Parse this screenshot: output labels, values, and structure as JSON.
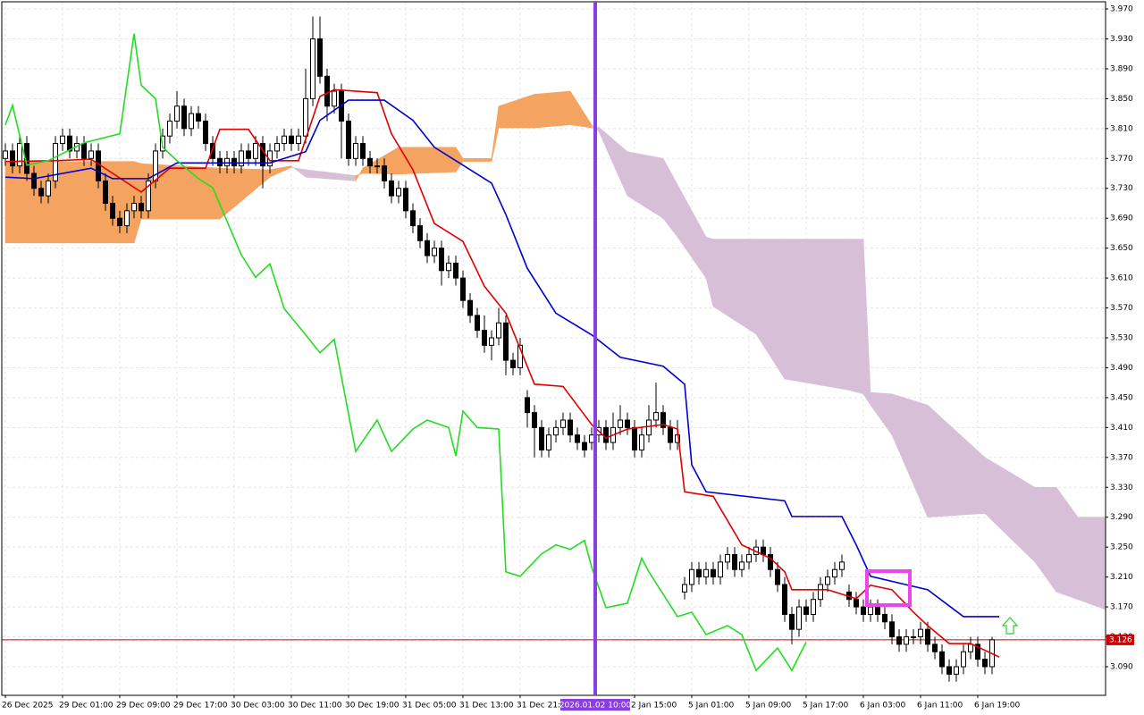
{
  "chart_data": {
    "type": "candlestick",
    "candles": [
      [
        3.77,
        3.79,
        3.76,
        3.78
      ],
      [
        3.78,
        3.79,
        3.75,
        3.76
      ],
      [
        3.76,
        3.8,
        3.75,
        3.79
      ],
      [
        3.79,
        3.8,
        3.74,
        3.75
      ],
      [
        3.75,
        3.76,
        3.72,
        3.73
      ],
      [
        3.73,
        3.74,
        3.71,
        3.72
      ],
      [
        3.72,
        3.75,
        3.71,
        3.74
      ],
      [
        3.74,
        3.8,
        3.73,
        3.79
      ],
      [
        3.79,
        3.81,
        3.78,
        3.8
      ],
      [
        3.8,
        3.81,
        3.77,
        3.78
      ],
      [
        3.78,
        3.8,
        3.77,
        3.79
      ],
      [
        3.79,
        3.8,
        3.76,
        3.77
      ],
      [
        3.77,
        3.79,
        3.76,
        3.78
      ],
      [
        3.78,
        3.79,
        3.73,
        3.74
      ],
      [
        3.74,
        3.75,
        3.7,
        3.71
      ],
      [
        3.71,
        3.72,
        3.68,
        3.69
      ],
      [
        3.69,
        3.7,
        3.67,
        3.68
      ],
      [
        3.68,
        3.71,
        3.67,
        3.7
      ],
      [
        3.7,
        3.72,
        3.69,
        3.71
      ],
      [
        3.71,
        3.72,
        3.69,
        3.7
      ],
      [
        3.7,
        3.75,
        3.69,
        3.74
      ],
      [
        3.74,
        3.79,
        3.73,
        3.78
      ],
      [
        3.78,
        3.81,
        3.77,
        3.8
      ],
      [
        3.8,
        3.83,
        3.79,
        3.82
      ],
      [
        3.82,
        3.86,
        3.81,
        3.84
      ],
      [
        3.84,
        3.85,
        3.8,
        3.81
      ],
      [
        3.81,
        3.84,
        3.8,
        3.83
      ],
      [
        3.83,
        3.84,
        3.81,
        3.82
      ],
      [
        3.82,
        3.83,
        3.78,
        3.79
      ],
      [
        3.79,
        3.8,
        3.76,
        3.77
      ],
      [
        3.77,
        3.78,
        3.75,
        3.76
      ],
      [
        3.76,
        3.78,
        3.75,
        3.77
      ],
      [
        3.77,
        3.78,
        3.75,
        3.76
      ],
      [
        3.76,
        3.79,
        3.75,
        3.78
      ],
      [
        3.78,
        3.79,
        3.76,
        3.77
      ],
      [
        3.77,
        3.8,
        3.76,
        3.79
      ],
      [
        3.79,
        3.8,
        3.73,
        3.76
      ],
      [
        3.76,
        3.79,
        3.75,
        3.78
      ],
      [
        3.78,
        3.8,
        3.77,
        3.79
      ],
      [
        3.79,
        3.81,
        3.78,
        3.8
      ],
      [
        3.8,
        3.81,
        3.78,
        3.79
      ],
      [
        3.79,
        3.81,
        3.78,
        3.8
      ],
      [
        3.8,
        3.89,
        3.79,
        3.85
      ],
      [
        3.85,
        3.96,
        3.84,
        3.93
      ],
      [
        3.93,
        3.96,
        3.87,
        3.88
      ],
      [
        3.88,
        3.89,
        3.82,
        3.84
      ],
      [
        3.84,
        3.87,
        3.83,
        3.86
      ],
      [
        3.86,
        3.87,
        3.77,
        3.82
      ],
      [
        3.82,
        3.83,
        3.76,
        3.77
      ],
      [
        3.77,
        3.8,
        3.76,
        3.79
      ],
      [
        3.79,
        3.8,
        3.76,
        3.77
      ],
      [
        3.77,
        3.78,
        3.75,
        3.76
      ],
      [
        3.76,
        3.77,
        3.75,
        3.76
      ],
      [
        3.76,
        3.77,
        3.73,
        3.74
      ],
      [
        3.74,
        3.75,
        3.71,
        3.72
      ],
      [
        3.72,
        3.74,
        3.71,
        3.73
      ],
      [
        3.73,
        3.74,
        3.69,
        3.7
      ],
      [
        3.7,
        3.71,
        3.67,
        3.68
      ],
      [
        3.68,
        3.69,
        3.65,
        3.66
      ],
      [
        3.66,
        3.67,
        3.63,
        3.64
      ],
      [
        3.64,
        3.66,
        3.63,
        3.65
      ],
      [
        3.65,
        3.66,
        3.6,
        3.62
      ],
      [
        3.62,
        3.64,
        3.61,
        3.63
      ],
      [
        3.63,
        3.64,
        3.6,
        3.61
      ],
      [
        3.61,
        3.62,
        3.57,
        3.58
      ],
      [
        3.58,
        3.59,
        3.55,
        3.56
      ],
      [
        3.56,
        3.57,
        3.53,
        3.54
      ],
      [
        3.54,
        3.56,
        3.51,
        3.52
      ],
      [
        3.52,
        3.54,
        3.5,
        3.53
      ],
      [
        3.53,
        3.57,
        3.52,
        3.55
      ],
      [
        3.55,
        3.56,
        3.48,
        3.5
      ],
      [
        3.5,
        3.51,
        3.48,
        3.49
      ],
      [
        3.49,
        3.53,
        3.48,
        3.52
      ],
      [
        3.45,
        3.46,
        3.41,
        3.43
      ],
      [
        3.43,
        3.44,
        3.37,
        3.41
      ],
      [
        3.41,
        3.42,
        3.37,
        3.38
      ],
      [
        3.38,
        3.41,
        3.37,
        3.4
      ],
      [
        3.4,
        3.42,
        3.39,
        3.41
      ],
      [
        3.41,
        3.43,
        3.4,
        3.42
      ],
      [
        3.42,
        3.43,
        3.39,
        3.4
      ],
      [
        3.4,
        3.41,
        3.38,
        3.39
      ],
      [
        3.39,
        3.4,
        3.37,
        3.38
      ],
      [
        3.39,
        3.41,
        3.38,
        3.4
      ],
      [
        3.4,
        3.42,
        3.39,
        3.41
      ],
      [
        3.41,
        3.42,
        3.38,
        3.39
      ],
      [
        3.39,
        3.43,
        3.38,
        3.41
      ],
      [
        3.41,
        3.44,
        3.4,
        3.42
      ],
      [
        3.42,
        3.43,
        3.4,
        3.41
      ],
      [
        3.41,
        3.42,
        3.37,
        3.38
      ],
      [
        3.38,
        3.41,
        3.37,
        3.4
      ],
      [
        3.4,
        3.44,
        3.39,
        3.42
      ],
      [
        3.42,
        3.47,
        3.41,
        3.43
      ],
      [
        3.43,
        3.44,
        3.4,
        3.41
      ],
      [
        3.41,
        3.42,
        3.38,
        3.39
      ],
      [
        3.39,
        3.42,
        3.38,
        3.4
      ],
      [
        3.19,
        3.21,
        3.18,
        3.2
      ],
      [
        3.2,
        3.23,
        3.19,
        3.22
      ],
      [
        3.22,
        3.23,
        3.2,
        3.21
      ],
      [
        3.21,
        3.23,
        3.2,
        3.22
      ],
      [
        3.22,
        3.23,
        3.2,
        3.21
      ],
      [
        3.21,
        3.24,
        3.2,
        3.23
      ],
      [
        3.23,
        3.25,
        3.22,
        3.24
      ],
      [
        3.24,
        3.25,
        3.21,
        3.22
      ],
      [
        3.22,
        3.24,
        3.21,
        3.23
      ],
      [
        3.23,
        3.25,
        3.22,
        3.24
      ],
      [
        3.24,
        3.26,
        3.23,
        3.25
      ],
      [
        3.25,
        3.26,
        3.23,
        3.24
      ],
      [
        3.24,
        3.25,
        3.21,
        3.22
      ],
      [
        3.22,
        3.23,
        3.19,
        3.2
      ],
      [
        3.2,
        3.21,
        3.15,
        3.16
      ],
      [
        3.16,
        3.17,
        3.12,
        3.14
      ],
      [
        3.14,
        3.18,
        3.13,
        3.17
      ],
      [
        3.17,
        3.18,
        3.15,
        3.16
      ],
      [
        3.16,
        3.19,
        3.15,
        3.18
      ],
      [
        3.18,
        3.21,
        3.17,
        3.2
      ],
      [
        3.2,
        3.22,
        3.19,
        3.21
      ],
      [
        3.21,
        3.23,
        3.2,
        3.22
      ],
      [
        3.22,
        3.24,
        3.21,
        3.23
      ],
      [
        3.19,
        3.2,
        3.17,
        3.18
      ],
      [
        3.18,
        3.19,
        3.16,
        3.17
      ],
      [
        3.17,
        3.18,
        3.15,
        3.16
      ],
      [
        3.16,
        3.18,
        3.15,
        3.17
      ],
      [
        3.17,
        3.18,
        3.15,
        3.16
      ],
      [
        3.16,
        3.17,
        3.14,
        3.15
      ],
      [
        3.15,
        3.16,
        3.12,
        3.13
      ],
      [
        3.13,
        3.14,
        3.11,
        3.12
      ],
      [
        3.12,
        3.14,
        3.11,
        3.13
      ],
      [
        3.13,
        3.14,
        3.12,
        3.13
      ],
      [
        3.13,
        3.15,
        3.12,
        3.14
      ],
      [
        3.14,
        3.15,
        3.11,
        3.12
      ],
      [
        3.12,
        3.13,
        3.1,
        3.11
      ],
      [
        3.11,
        3.12,
        3.08,
        3.09
      ],
      [
        3.09,
        3.1,
        3.07,
        3.08
      ],
      [
        3.08,
        3.1,
        3.07,
        3.09
      ],
      [
        3.09,
        3.12,
        3.08,
        3.11
      ],
      [
        3.11,
        3.13,
        3.1,
        3.12
      ],
      [
        3.12,
        3.13,
        3.09,
        3.1
      ],
      [
        3.1,
        3.11,
        3.08,
        3.09
      ],
      [
        3.09,
        3.13,
        3.08,
        3.126
      ]
    ],
    "bull_color": "#ffffff",
    "bear_color": "#000000",
    "series": [
      {
        "color": "#e00000",
        "x": [
          0,
          7,
          12,
          19,
          23,
          28,
          30,
          34,
          37,
          41,
          44,
          46,
          52,
          54,
          57,
          60,
          64,
          67,
          70,
          74,
          78,
          82,
          84,
          87,
          92,
          94,
          95,
          99,
          103,
          107,
          109,
          110,
          115,
          119,
          121,
          124,
          127,
          129,
          132,
          135,
          139
        ],
        "values": [
          3.766,
          3.767,
          3.769,
          3.725,
          3.757,
          3.757,
          3.809,
          3.809,
          3.767,
          3.767,
          3.853,
          3.862,
          3.858,
          3.803,
          3.755,
          3.683,
          3.659,
          3.599,
          3.563,
          3.468,
          3.465,
          3.414,
          3.396,
          3.408,
          3.414,
          3.408,
          3.324,
          3.318,
          3.253,
          3.235,
          3.217,
          3.193,
          3.193,
          3.181,
          3.199,
          3.193,
          3.163,
          3.145,
          3.121,
          3.121,
          3.103
        ]
      },
      {
        "color": "#0000d0",
        "x": [
          0,
          4,
          12,
          15,
          20,
          24,
          37,
          42,
          44,
          48,
          53,
          57,
          60,
          64,
          68,
          70,
          73,
          77,
          82,
          86,
          92,
          95,
          96,
          98,
          109,
          110,
          117,
          119,
          121,
          129,
          134,
          139
        ],
        "values": [
          3.745,
          3.743,
          3.757,
          3.743,
          3.743,
          3.764,
          3.764,
          3.779,
          3.821,
          3.848,
          3.848,
          3.821,
          3.785,
          3.761,
          3.737,
          3.695,
          3.623,
          3.563,
          3.534,
          3.504,
          3.492,
          3.468,
          3.36,
          3.324,
          3.312,
          3.291,
          3.291,
          3.253,
          3.211,
          3.193,
          3.157,
          3.157
        ]
      },
      {
        "color": "#22dd22",
        "x": [
          0,
          1,
          3,
          6,
          11,
          16,
          18,
          19,
          21,
          22,
          24,
          27,
          29,
          33,
          35,
          37,
          39,
          42,
          44,
          46,
          49,
          52,
          54,
          57,
          59,
          62,
          63,
          64,
          66,
          69,
          70,
          72,
          75,
          77,
          79,
          81,
          82,
          84,
          87,
          89,
          90,
          94,
          96,
          98,
          101,
          103,
          105,
          108,
          110,
          112
        ],
        "values": [
          3.815,
          3.841,
          3.761,
          3.767,
          3.791,
          3.803,
          3.937,
          3.868,
          3.85,
          3.785,
          3.767,
          3.743,
          3.731,
          3.641,
          3.611,
          3.629,
          3.569,
          3.534,
          3.51,
          3.528,
          3.378,
          3.42,
          3.378,
          3.408,
          3.42,
          3.41,
          3.372,
          3.432,
          3.41,
          3.408,
          3.217,
          3.211,
          3.241,
          3.253,
          3.247,
          3.259,
          3.223,
          3.169,
          3.175,
          3.235,
          3.217,
          3.157,
          3.163,
          3.133,
          3.145,
          3.133,
          3.085,
          3.115,
          3.085,
          3.123
        ]
      }
    ],
    "cloud": {
      "x": [
        0,
        18,
        19,
        30,
        37,
        40,
        42,
        49,
        50,
        55,
        63,
        64,
        68,
        69,
        74,
        79,
        82,
        83,
        87,
        92,
        94,
        98,
        99,
        105,
        109,
        118,
        120,
        121,
        124,
        129,
        137,
        144,
        147,
        150,
        154
      ],
      "span_a": [
        3.766,
        3.766,
        3.763,
        3.757,
        3.755,
        3.76,
        3.745,
        3.74,
        3.757,
        3.785,
        3.785,
        3.77,
        3.77,
        3.84,
        3.856,
        3.86,
        3.815,
        3.806,
        3.72,
        3.69,
        3.665,
        3.61,
        3.572,
        3.535,
        3.475,
        3.46,
        3.455,
        3.44,
        3.4,
        3.29,
        3.295,
        3.23,
        3.19,
        3.18,
        3.166
      ],
      "span_b": [
        3.657,
        3.657,
        3.689,
        3.689,
        3.745,
        3.758,
        3.755,
        3.747,
        3.75,
        3.749,
        3.752,
        3.766,
        3.766,
        3.811,
        3.811,
        3.815,
        3.811,
        3.812,
        3.779,
        3.77,
        3.735,
        3.665,
        3.662,
        3.662,
        3.662,
        3.662,
        3.662,
        3.457,
        3.455,
        3.44,
        3.37,
        3.33,
        3.33,
        3.29,
        3.29
      ],
      "up_color": "#f4a460",
      "down_color": "#d8bfd8"
    },
    "xlim": [
      -0.5,
      153.875
    ],
    "xticks": [
      {
        "value": 0,
        "label": "26 Dec 2025"
      },
      {
        "value": 8,
        "label": "29 Dec 01:00"
      },
      {
        "value": 16,
        "label": "29 Dec 09:00"
      },
      {
        "value": 24,
        "label": "29 Dec 17:00"
      },
      {
        "value": 32,
        "label": "30 Dec 03:00"
      },
      {
        "value": 40,
        "label": "30 Dec 11:00"
      },
      {
        "value": 48,
        "label": "30 Dec 19:00"
      },
      {
        "value": 56,
        "label": "31 Dec 05:00"
      },
      {
        "value": 64,
        "label": "31 Dec 13:00"
      },
      {
        "value": 72,
        "label": "31 Dec 21:00"
      },
      {
        "value": 88,
        "label": "2 Jan 15:00"
      },
      {
        "value": 96,
        "label": "5 Jan 01:00"
      },
      {
        "value": 104,
        "label": "5 Jan 09:00"
      },
      {
        "value": 112,
        "label": "5 Jan 17:00"
      },
      {
        "value": 120,
        "label": "6 Jan 03:00"
      },
      {
        "value": 128,
        "label": "6 Jan 11:00"
      },
      {
        "value": 136,
        "label": "6 Jan 19:00"
      }
    ],
    "ylim": [
      3.0517,
      3.9796
    ],
    "yticks": [
      {
        "value": 3.97,
        "label": "3.970"
      },
      {
        "value": 3.93,
        "label": "3.930"
      },
      {
        "value": 3.89,
        "label": "3.890"
      },
      {
        "value": 3.85,
        "label": "3.850"
      },
      {
        "value": 3.81,
        "label": "3.810"
      },
      {
        "value": 3.77,
        "label": "3.770"
      },
      {
        "value": 3.73,
        "label": "3.730"
      },
      {
        "value": 3.69,
        "label": "3.690"
      },
      {
        "value": 3.65,
        "label": "3.650"
      },
      {
        "value": 3.61,
        "label": "3.610"
      },
      {
        "value": 3.57,
        "label": "3.570"
      },
      {
        "value": 3.53,
        "label": "3.530"
      },
      {
        "value": 3.49,
        "label": "3.490"
      },
      {
        "value": 3.45,
        "label": "3.450"
      },
      {
        "value": 3.41,
        "label": "3.410"
      },
      {
        "value": 3.37,
        "label": "3.370"
      },
      {
        "value": 3.33,
        "label": "3.330"
      },
      {
        "value": 3.29,
        "label": "3.290"
      },
      {
        "value": 3.25,
        "label": "3.250"
      },
      {
        "value": 3.21,
        "label": "3.210"
      },
      {
        "value": 3.17,
        "label": "3.170"
      },
      {
        "value": 3.13,
        "label": "3.130"
      },
      {
        "value": 3.09,
        "label": "3.090"
      }
    ],
    "grid": true,
    "price_line": {
      "value": 3.126,
      "label": "3.126",
      "color": "#cc0000"
    },
    "crosshair": {
      "x": 82.5,
      "label": "2026.01.02 10:00",
      "color": "#8a3ee0"
    }
  }
}
